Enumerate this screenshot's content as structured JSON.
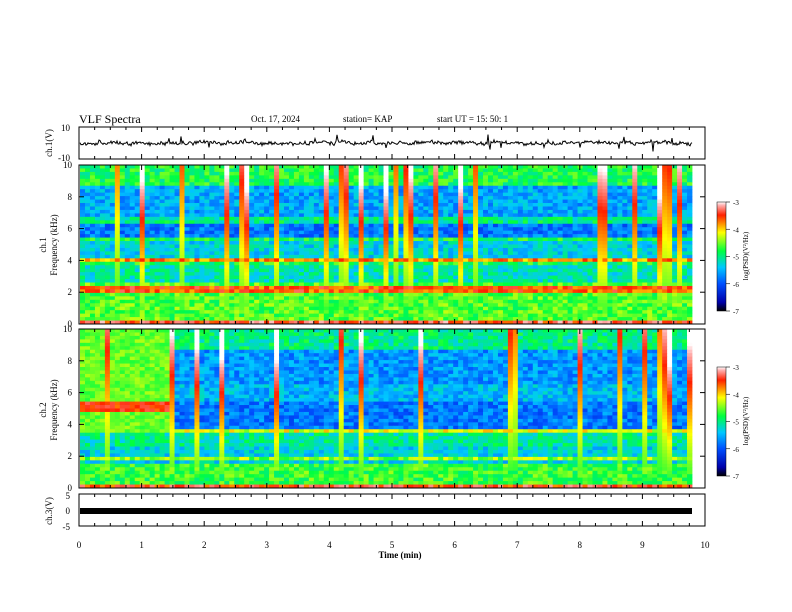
{
  "header": {
    "title": "VLF Spectra",
    "date": "Oct. 17, 2024",
    "station": "station= KAP",
    "start": "start  UT  =   15: 50: 1"
  },
  "chart_data": [
    {
      "type": "line",
      "panel": "ch1-waveform",
      "ylabel": "ch.1(V)",
      "yticks": [
        "10",
        "-10"
      ],
      "ylim": [
        -10,
        10
      ],
      "xlim": [
        0,
        10
      ],
      "series": [
        {
          "description_values": "noisy voltage oscillating around 0 with spikes to about ±8 V",
          "values": [
            1,
            -2,
            3,
            -1,
            2,
            -3,
            1,
            0,
            -2,
            2,
            1,
            -1,
            3,
            -2,
            0,
            2,
            -1,
            1,
            -3,
            2,
            0,
            -1,
            2,
            1,
            -2,
            3,
            -1,
            0,
            2,
            -2
          ]
        }
      ]
    },
    {
      "type": "heatmap",
      "panel": "ch1-spectrogram",
      "ylabel": "Frequency  (kHz)",
      "ylabel_channel": "ch.1",
      "yticks": [
        "0",
        "2",
        "4",
        "6",
        "8",
        "10"
      ],
      "ylim": [
        0,
        10
      ],
      "xlim": [
        0,
        10
      ],
      "colorbar": {
        "label": "log(PSD)(V²/Hz)",
        "ticks": [
          "-3",
          "-4",
          "-5",
          "-6",
          "-7"
        ],
        "range": [
          -7,
          -3
        ]
      }
    },
    {
      "type": "heatmap",
      "panel": "ch2-spectrogram",
      "ylabel": "Frequency  (kHz)",
      "ylabel_channel": "ch.2",
      "yticks": [
        "0",
        "2",
        "4",
        "6",
        "8",
        "10"
      ],
      "ylim": [
        0,
        10
      ],
      "xlim": [
        0,
        10
      ],
      "colorbar": {
        "label": "log(PSD)(V²/Hz)",
        "ticks": [
          "-3",
          "-4",
          "-5",
          "-6",
          "-7"
        ],
        "range": [
          -7,
          -3
        ]
      }
    },
    {
      "type": "line",
      "panel": "ch3-waveform",
      "ylabel": "ch.3(V)",
      "yticks": [
        "5",
        "0",
        "-5"
      ],
      "ylim": [
        -5,
        5
      ],
      "xlim": [
        0,
        10
      ],
      "series": [
        {
          "values": [
            -1,
            -1
          ]
        }
      ]
    }
  ],
  "xaxis": {
    "label": "Time  (min)",
    "ticks": [
      "0",
      "1",
      "2",
      "3",
      "4",
      "5",
      "6",
      "7",
      "8",
      "9",
      "10"
    ]
  }
}
